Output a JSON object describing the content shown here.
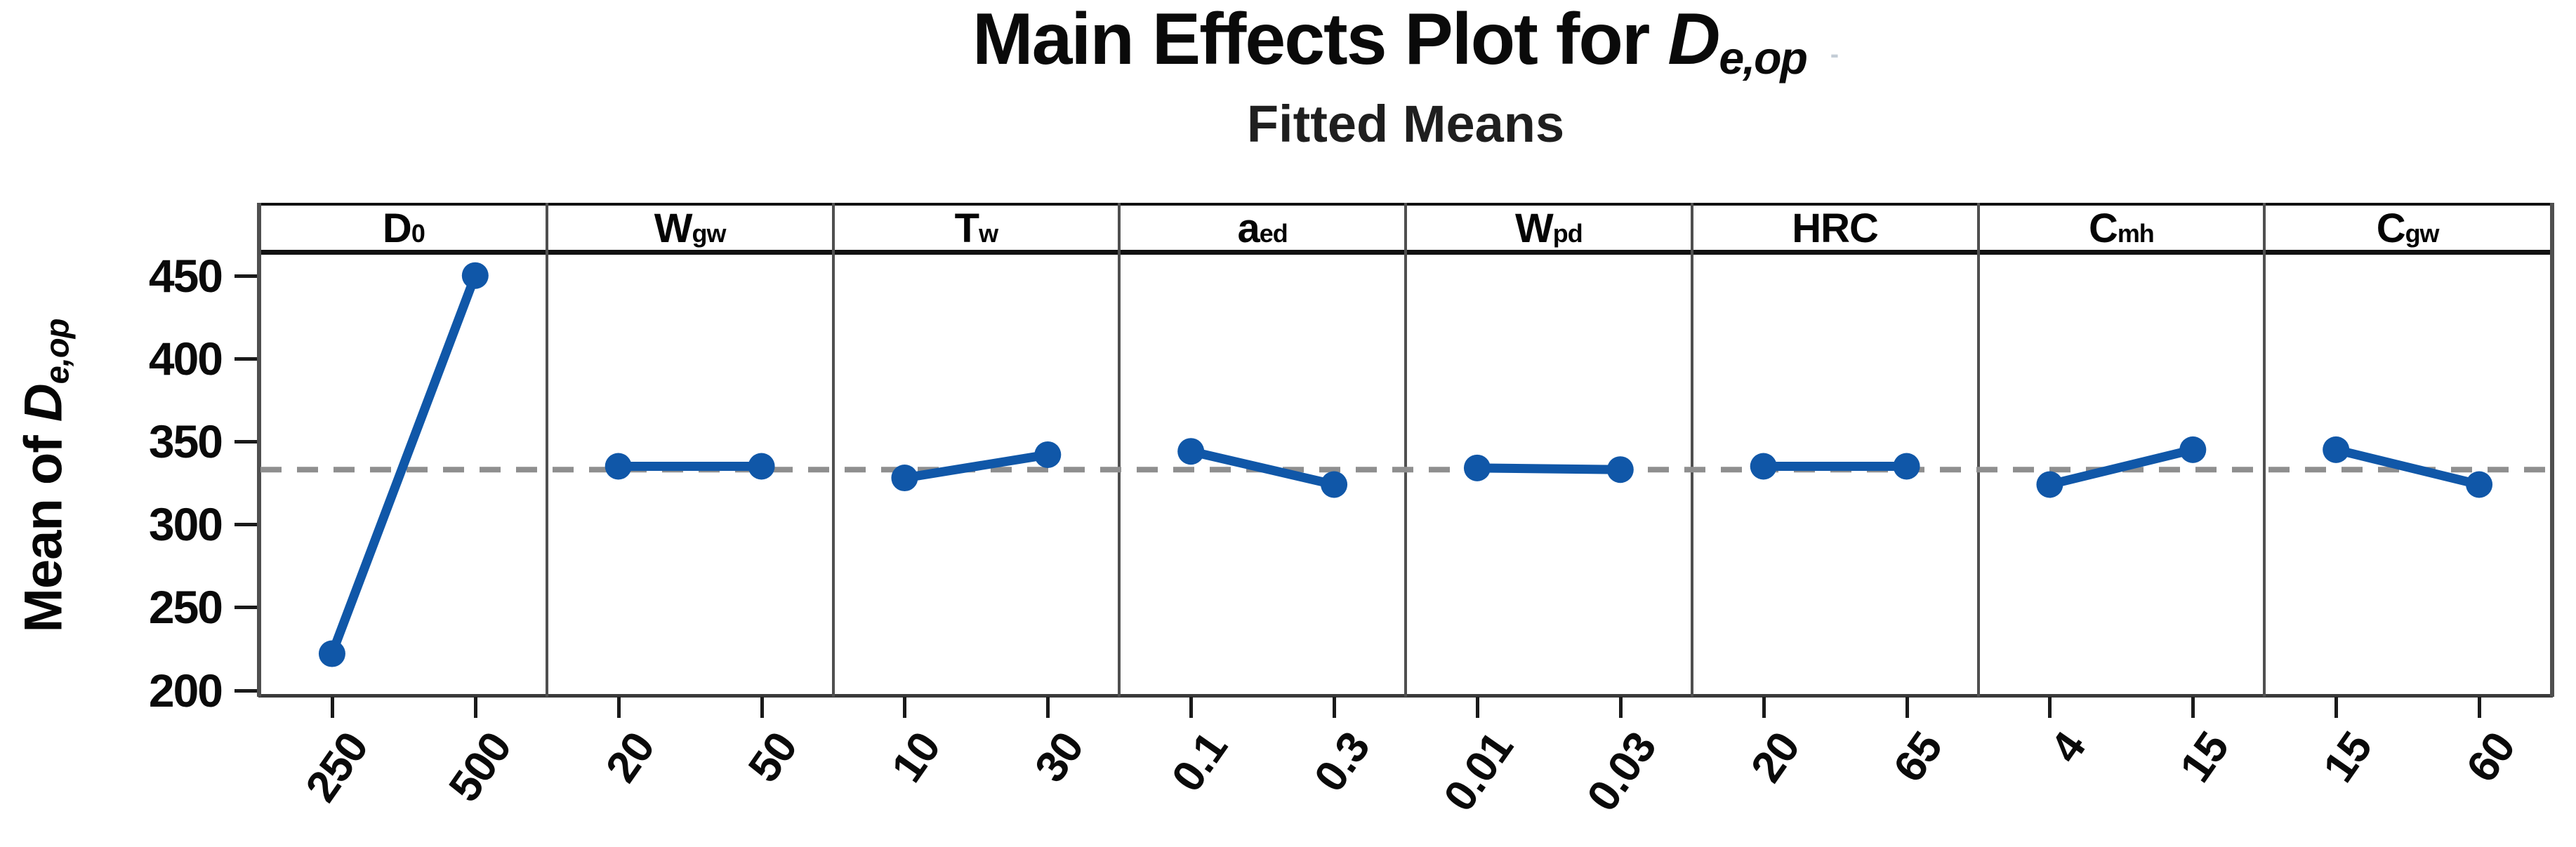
{
  "title": {
    "prefix": "Main Effects Plot for ",
    "variable": "D",
    "variable_sub": "e,op",
    "trailing_mark": "-"
  },
  "subtitle": "Fitted Means",
  "y_axis": {
    "label_prefix": "Mean of ",
    "label_variable": "D",
    "label_variable_sub": "e,op"
  },
  "colors": {
    "series_blue": "#1057A8",
    "reference_gray": "#8F8F8F",
    "header_border": "#111111",
    "frame_gray": "#4F4F4F",
    "bottom_frame": "#3A3A3A",
    "tick_black": "#1A1A1A",
    "text_black": "#0A0A0A"
  },
  "chart_data": {
    "type": "line",
    "title": "Main Effects Plot for De,op",
    "subtitle": "Fitted Means",
    "ylabel": "Mean of De,op",
    "xlabel": "",
    "ylim": [
      196,
      463
    ],
    "yticks": [
      450,
      400,
      350,
      300,
      250,
      200
    ],
    "reference_mean": 333,
    "grid": "off",
    "legend": "none",
    "panels": [
      {
        "factor": "D0",
        "label_base": "D",
        "label_sub": "0",
        "levels": [
          "250",
          "500"
        ],
        "means": [
          222,
          450
        ]
      },
      {
        "factor": "Wgw",
        "label_base": "W",
        "label_sub": "gw",
        "levels": [
          "20",
          "50"
        ],
        "means": [
          335,
          335
        ]
      },
      {
        "factor": "Tw",
        "label_base": "T",
        "label_sub": "w",
        "levels": [
          "10",
          "30"
        ],
        "means": [
          328,
          342
        ]
      },
      {
        "factor": "aed",
        "label_base": "a",
        "label_sub": "ed",
        "levels": [
          "0.1",
          "0.3"
        ],
        "means": [
          344,
          324
        ]
      },
      {
        "factor": "Wpd",
        "label_base": "W",
        "label_sub": "pd",
        "levels": [
          "0.01",
          "0.03"
        ],
        "means": [
          334,
          333
        ]
      },
      {
        "factor": "HRC",
        "label_base": "HRC",
        "label_sub": "",
        "levels": [
          "20",
          "65"
        ],
        "means": [
          335,
          335
        ]
      },
      {
        "factor": "Cmh",
        "label_base": "C",
        "label_sub": "mh",
        "levels": [
          "4",
          "15"
        ],
        "means": [
          324,
          345
        ]
      },
      {
        "factor": "Cgw",
        "label_base": "C",
        "label_sub": "gw",
        "levels": [
          "15",
          "60"
        ],
        "means": [
          345,
          324
        ]
      }
    ]
  }
}
